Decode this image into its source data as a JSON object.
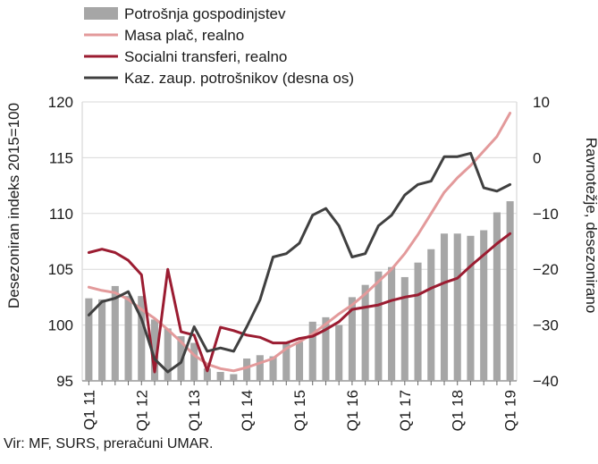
{
  "chart_data": {
    "type": "bar+line",
    "source": "Vir: MF, SURS, preračuni UMAR.",
    "y_left": {
      "label": "Desezoniran indeks 2015=100",
      "min": 95,
      "max": 120,
      "ticks": [
        "95",
        "100",
        "105",
        "110",
        "115",
        "120"
      ]
    },
    "y_right": {
      "label": "Ravnotežje, desezonirano",
      "min": -40,
      "max": 10,
      "ticks": [
        "-40",
        "-30",
        "-20",
        "-10",
        "0",
        "10"
      ]
    },
    "x_tick_labels": [
      {
        "index": 0,
        "label": "Q1 11"
      },
      {
        "index": 4,
        "label": "Q1 12"
      },
      {
        "index": 8,
        "label": "Q1 13"
      },
      {
        "index": 12,
        "label": "Q1 14"
      },
      {
        "index": 16,
        "label": "Q1 15"
      },
      {
        "index": 20,
        "label": "Q1 16"
      },
      {
        "index": 24,
        "label": "Q1 17"
      },
      {
        "index": 28,
        "label": "Q1 18"
      },
      {
        "index": 32,
        "label": "Q1 19"
      }
    ],
    "categories": [
      "Q1 11",
      "Q2 11",
      "Q3 11",
      "Q4 11",
      "Q1 12",
      "Q2 12",
      "Q3 12",
      "Q4 12",
      "Q1 13",
      "Q2 13",
      "Q3 13",
      "Q4 13",
      "Q1 14",
      "Q2 14",
      "Q3 14",
      "Q4 14",
      "Q1 15",
      "Q2 15",
      "Q3 15",
      "Q4 15",
      "Q1 16",
      "Q2 16",
      "Q3 16",
      "Q4 16",
      "Q1 17",
      "Q2 17",
      "Q3 17",
      "Q4 17",
      "Q1 18",
      "Q2 18",
      "Q3 18",
      "Q4 18",
      "Q1 19"
    ],
    "series": [
      {
        "name": "Potrošnja gospodinjstev",
        "type": "bar",
        "axis": "left",
        "color": "#a6a6a6",
        "values": [
          102.4,
          102.3,
          103.5,
          102.6,
          102.6,
          100.5,
          99.7,
          99.0,
          98.4,
          96.1,
          95.8,
          95.6,
          97.0,
          97.3,
          97.2,
          98.5,
          98.5,
          100.3,
          100.7,
          100.0,
          102.5,
          103.6,
          104.8,
          105.2,
          104.3,
          105.6,
          106.8,
          108.2,
          108.2,
          108.0,
          108.5,
          110.1,
          111.1
        ]
      },
      {
        "name": "Masa plač, realno",
        "type": "line",
        "axis": "left",
        "color": "#e39a9b",
        "values": [
          103.4,
          103.1,
          102.9,
          102.3,
          101.4,
          100.6,
          99.6,
          98.5,
          97.3,
          96.5,
          96.1,
          95.9,
          96.2,
          96.6,
          97.0,
          97.9,
          98.5,
          99.2,
          100.1,
          101.0,
          101.8,
          102.8,
          103.9,
          105.0,
          106.4,
          108.1,
          110.0,
          111.9,
          113.2,
          114.3,
          115.6,
          116.9,
          119.0
        ]
      },
      {
        "name": "Socialni transferi, realno",
        "type": "line",
        "axis": "left",
        "color": "#9b1c31",
        "values": [
          106.5,
          106.8,
          106.5,
          105.8,
          104.5,
          95.8,
          105.0,
          99.4,
          99.1,
          95.9,
          99.8,
          99.5,
          99.1,
          98.9,
          98.4,
          98.4,
          98.8,
          99.0,
          99.6,
          100.3,
          101.4,
          101.6,
          101.8,
          102.2,
          102.5,
          102.7,
          103.3,
          103.8,
          104.2,
          105.3,
          106.3,
          107.3,
          108.2
        ]
      },
      {
        "name": "Kaz. zaup. potrošnikov (desna os)",
        "type": "line",
        "axis": "right",
        "color": "#404040",
        "values": [
          -28.2,
          -25.8,
          -25.2,
          -24.0,
          -28.9,
          -36.1,
          -38.4,
          -36.7,
          -30.3,
          -34.7,
          -34.1,
          -34.7,
          -30.3,
          -25.5,
          -17.8,
          -17.2,
          -15.3,
          -10.3,
          -9.1,
          -12.2,
          -17.8,
          -17.2,
          -12.2,
          -10.3,
          -6.7,
          -4.8,
          -4.2,
          0.2,
          0.2,
          0.8,
          -5.4,
          -6.0,
          -4.8
        ]
      }
    ]
  }
}
